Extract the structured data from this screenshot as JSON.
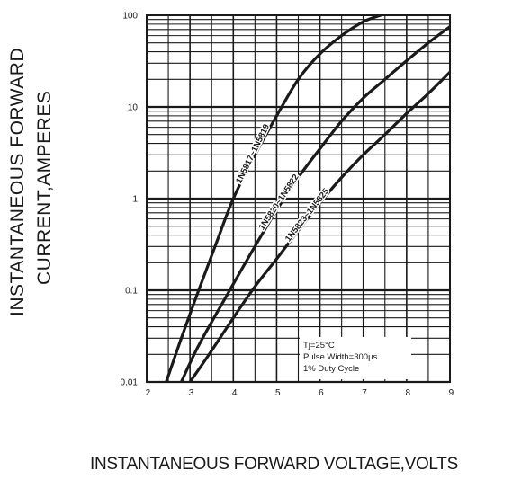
{
  "chart_data": {
    "type": "line",
    "title": "",
    "xlabel": "INSTANTANEOUS FORWARD VOLTAGE,VOLTS",
    "ylabel_line1": "INSTANTANEOUS FORWARD",
    "ylabel_line2": "CURRENT,AMPERES",
    "x_scale": "linear",
    "y_scale": "log",
    "xlim": [
      0.2,
      0.9
    ],
    "ylim": [
      0.01,
      100
    ],
    "x_ticks": [
      ".2",
      ".3",
      ".4",
      ".5",
      ".6",
      ".7",
      ".8",
      ".9"
    ],
    "x_tick_values": [
      0.2,
      0.3,
      0.4,
      0.5,
      0.6,
      0.7,
      0.8,
      0.9
    ],
    "y_ticks": [
      "0.01",
      "0.1",
      "1",
      "10",
      "100"
    ],
    "y_tick_values": [
      0.01,
      0.1,
      1,
      10,
      100
    ],
    "grid": true,
    "annotation": {
      "line1": "Tj=25°C",
      "line2": "Pulse Width=300μs",
      "line3": "1% Duty Cycle"
    },
    "series": [
      {
        "name": "1N5817~1N5819",
        "x": [
          0.245,
          0.28,
          0.32,
          0.36,
          0.4,
          0.45,
          0.5,
          0.55,
          0.6,
          0.65,
          0.7,
          0.74
        ],
        "y": [
          0.01,
          0.03,
          0.1,
          0.32,
          1.0,
          3.0,
          8.0,
          20,
          38,
          60,
          85,
          100
        ]
      },
      {
        "name": "1N5820~1N5822",
        "x": [
          0.28,
          0.32,
          0.38,
          0.44,
          0.5,
          0.55,
          0.6,
          0.65,
          0.7,
          0.75,
          0.8,
          0.85,
          0.9
        ],
        "y": [
          0.01,
          0.025,
          0.08,
          0.25,
          0.75,
          1.7,
          3.5,
          7.0,
          12.5,
          20,
          32,
          50,
          75
        ]
      },
      {
        "name": "1N5823~1N5825",
        "x": [
          0.3,
          0.35,
          0.4,
          0.45,
          0.5,
          0.55,
          0.6,
          0.65,
          0.7,
          0.75,
          0.8,
          0.85,
          0.9
        ],
        "y": [
          0.01,
          0.022,
          0.05,
          0.11,
          0.22,
          0.45,
          0.9,
          1.7,
          3.0,
          5.0,
          8.5,
          14,
          24
        ]
      }
    ]
  }
}
